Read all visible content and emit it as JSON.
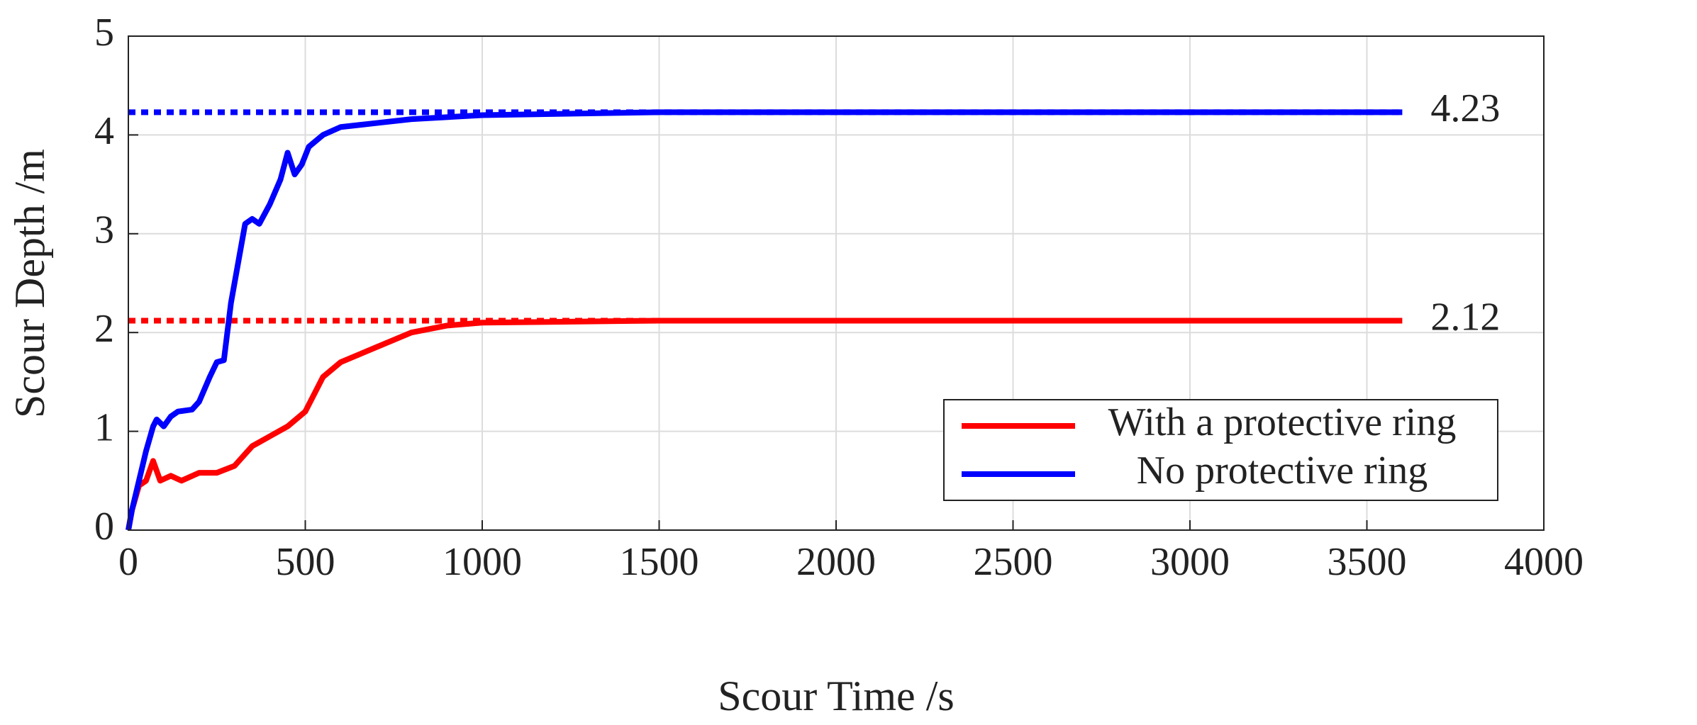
{
  "chart_data": {
    "type": "line",
    "xlabel": "Scour Time /s",
    "ylabel": "Scour Depth /m",
    "xlim": [
      0,
      4000
    ],
    "xticks": [
      0,
      500,
      1000,
      1500,
      2000,
      2500,
      3000,
      3500,
      4000
    ],
    "ylim": [
      0,
      5
    ],
    "yticks": [
      0,
      1,
      2,
      3,
      4,
      5
    ],
    "grid": true,
    "legend": "lower right",
    "series": [
      {
        "name": "With a protective ring",
        "color": "#ff0000",
        "x": [
          0,
          10,
          30,
          50,
          70,
          90,
          120,
          150,
          200,
          250,
          300,
          350,
          400,
          450,
          500,
          550,
          600,
          700,
          800,
          900,
          1000,
          1500,
          3600
        ],
        "values": [
          0,
          0.2,
          0.45,
          0.5,
          0.7,
          0.5,
          0.55,
          0.5,
          0.58,
          0.58,
          0.65,
          0.85,
          0.95,
          1.05,
          1.2,
          1.55,
          1.7,
          1.85,
          2.0,
          2.07,
          2.1,
          2.12,
          2.12
        ]
      },
      {
        "name": "No protective ring",
        "color": "#0000ff",
        "x": [
          0,
          10,
          30,
          50,
          70,
          80,
          100,
          120,
          140,
          180,
          200,
          230,
          250,
          270,
          290,
          310,
          330,
          350,
          370,
          400,
          430,
          450,
          470,
          490,
          510,
          550,
          600,
          700,
          800,
          1000,
          1500,
          3600
        ],
        "values": [
          0,
          0.2,
          0.5,
          0.8,
          1.05,
          1.12,
          1.05,
          1.15,
          1.2,
          1.22,
          1.3,
          1.55,
          1.7,
          1.72,
          2.3,
          2.7,
          3.1,
          3.15,
          3.1,
          3.3,
          3.55,
          3.82,
          3.6,
          3.7,
          3.88,
          4.0,
          4.08,
          4.12,
          4.16,
          4.2,
          4.23,
          4.23
        ]
      }
    ],
    "annotations": [
      {
        "label": "4.23",
        "y": 4.23,
        "color": "#0000ff"
      },
      {
        "label": "2.12",
        "y": 2.12,
        "color": "#ff0000"
      }
    ]
  }
}
